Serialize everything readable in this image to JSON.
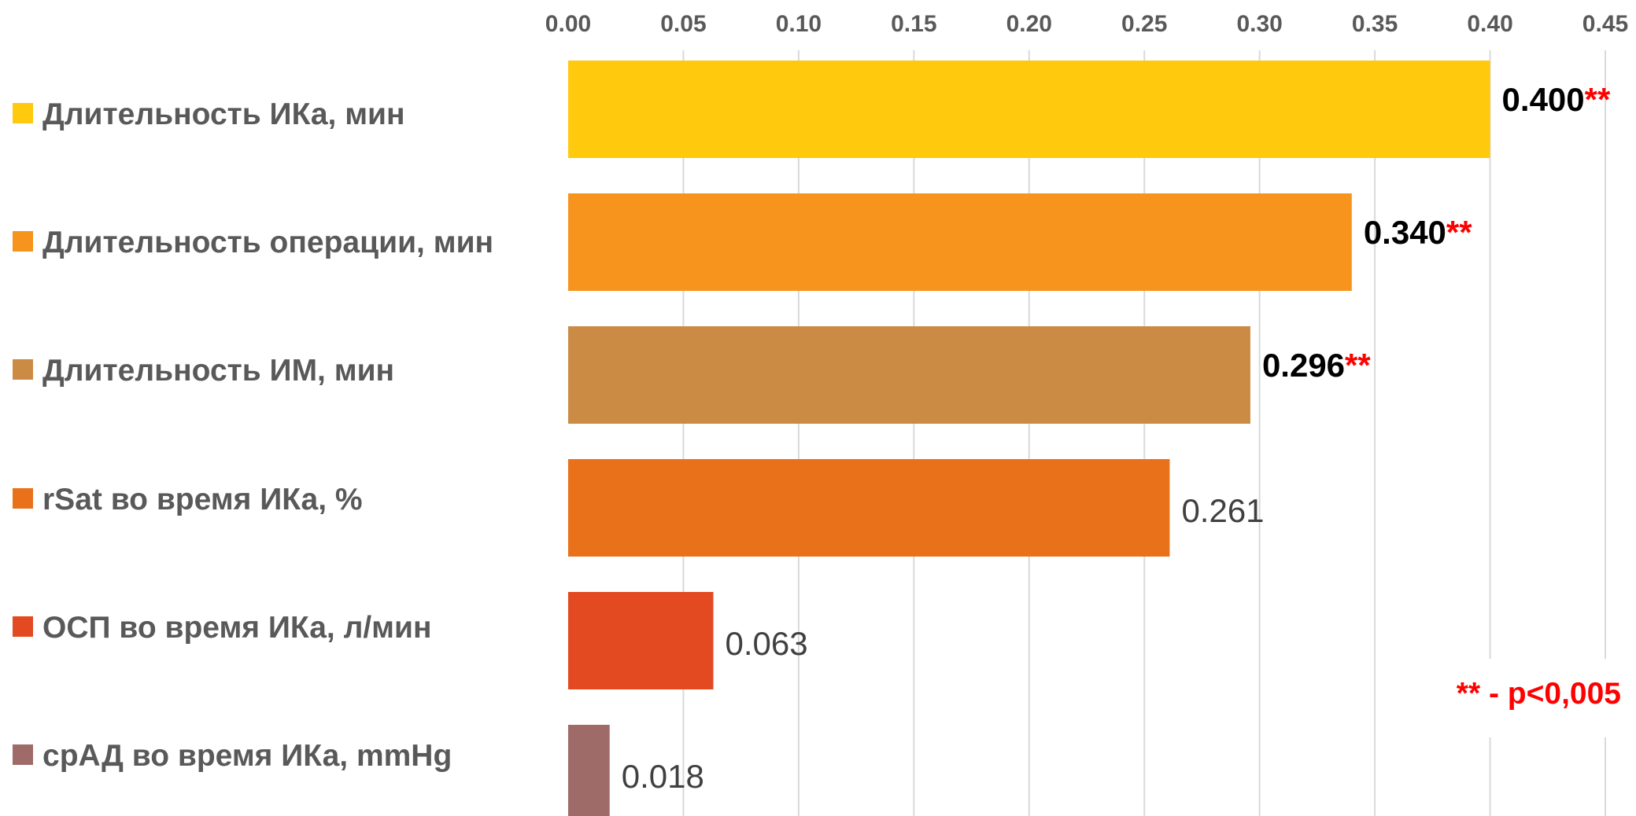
{
  "chart_data": {
    "type": "bar",
    "orientation": "horizontal",
    "title": "",
    "xlabel": "",
    "ylabel": "",
    "xlim": [
      0,
      0.45
    ],
    "ticks": [
      "0.00",
      "0.05",
      "0.10",
      "0.15",
      "0.20",
      "0.25",
      "0.30",
      "0.35",
      "0.40",
      "0.45"
    ],
    "tick_values": [
      0,
      0.05,
      0.1,
      0.15,
      0.2,
      0.25,
      0.3,
      0.35,
      0.4,
      0.45
    ],
    "grid": "vertical",
    "legend_position": "left",
    "categories": [
      "Длительность ИКа, мин",
      "Длительность операции, мин",
      "Длительность ИМ, мин",
      "rSat во время ИКа, %",
      "ОСП во время ИКа, л/мин",
      "срАД во время ИКа, mmHg"
    ],
    "values": [
      0.4,
      0.34,
      0.296,
      0.261,
      0.063,
      0.018
    ],
    "value_labels": [
      "0.400",
      "0.340",
      "0.296",
      "0.261",
      "0.063",
      "0.018"
    ],
    "significance_marks": [
      "**",
      "**",
      "**",
      "",
      "",
      ""
    ],
    "colors": [
      "#FFC90E",
      "#F7941D",
      "#CC8B45",
      "#E8711A",
      "#E34A22",
      "#9E6B69"
    ],
    "grid_color": "#d9d9d9",
    "footnote": "** - p<0,005"
  }
}
